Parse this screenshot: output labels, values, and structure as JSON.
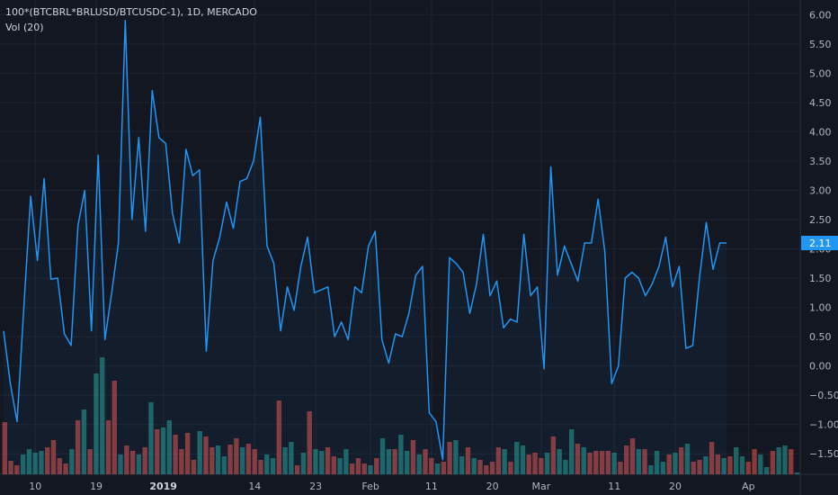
{
  "legend": {
    "symbol": "100*(BTCBRL*BRLUSD/BTCUSDC-1), 1D, MERCADO",
    "volume": "Vol (20)"
  },
  "colors": {
    "background": "#131722",
    "grid": "#1e2330",
    "line": "#2196f3",
    "volume_up": "#26a69a",
    "volume_down": "#ef5350",
    "price_label_bg": "#2196f3"
  },
  "chart_data": {
    "type": "line",
    "ylim": [
      -1.85,
      6.25
    ],
    "y_ticks": [
      6.0,
      5.5,
      5.0,
      4.5,
      4.0,
      3.5,
      3.0,
      2.5,
      2.0,
      1.5,
      1.0,
      0.5,
      0.0,
      -0.5,
      -1.0,
      -1.5
    ],
    "y_tick_labels": [
      "6.00",
      "5.50",
      "5.00",
      "4.50",
      "4.00",
      "3.50",
      "3.00",
      "2.50",
      "2.00",
      "1.50",
      "1.00",
      "0.50",
      "0.00",
      "−0.50",
      "−1.00",
      "−1.50"
    ],
    "x_ticks": [
      {
        "label": "10",
        "index": 5,
        "bold": false
      },
      {
        "label": "19",
        "index": 15,
        "bold": false
      },
      {
        "label": "2019",
        "index": 26,
        "bold": true
      },
      {
        "label": "14",
        "index": 41,
        "bold": false
      },
      {
        "label": "23",
        "index": 51,
        "bold": false
      },
      {
        "label": "Feb",
        "index": 60,
        "bold": false
      },
      {
        "label": "11",
        "index": 70,
        "bold": false
      },
      {
        "label": "20",
        "index": 80,
        "bold": false
      },
      {
        "label": "Mar",
        "index": 88,
        "bold": false
      },
      {
        "label": "11",
        "index": 100,
        "bold": false
      },
      {
        "label": "20",
        "index": 110,
        "bold": false
      },
      {
        "label": "Ap",
        "index": 122,
        "bold": false
      }
    ],
    "last_value_label": "2.11",
    "series": [
      {
        "values": [
          0.6,
          -0.3,
          -0.95,
          1.0,
          2.9,
          1.8,
          3.2,
          1.48,
          1.5,
          0.55,
          0.35,
          2.4,
          3.0,
          0.6,
          3.6,
          0.45,
          1.25,
          2.1,
          5.9,
          2.5,
          3.9,
          2.3,
          4.7,
          3.9,
          3.8,
          2.6,
          2.1,
          3.7,
          3.25,
          3.35,
          0.25,
          1.8,
          2.2,
          2.8,
          2.35,
          3.15,
          3.2,
          3.5,
          4.25,
          2.05,
          1.75,
          0.6,
          1.35,
          0.95,
          1.7,
          2.2,
          1.25,
          1.3,
          1.35,
          0.5,
          0.75,
          0.45,
          1.35,
          1.25,
          2.05,
          2.3,
          0.45,
          0.05,
          0.55,
          0.5,
          0.9,
          1.55,
          1.7,
          -0.8,
          -0.95,
          -1.6,
          1.85,
          1.75,
          1.6,
          0.9,
          1.4,
          2.25,
          1.2,
          1.45,
          0.65,
          0.8,
          0.75,
          2.25,
          1.2,
          1.35,
          -0.05,
          3.4,
          1.55,
          2.05,
          1.75,
          1.45,
          2.1,
          2.1,
          2.85,
          1.95,
          -0.3,
          0.0,
          1.5,
          1.6,
          1.5,
          1.2,
          1.4,
          1.7,
          2.2,
          1.35,
          1.7,
          0.3,
          0.35,
          1.5,
          2.45,
          1.65,
          2.1,
          2.1
        ]
      },
      {
        "name": "Vol (20)",
        "type": "bar",
        "values": [
          58,
          15,
          10,
          22,
          28,
          24,
          26,
          30,
          38,
          18,
          12,
          28,
          60,
          72,
          28,
          112,
          130,
          60,
          104,
          22,
          32,
          26,
          22,
          30,
          80,
          50,
          52,
          60,
          44,
          28,
          46,
          16,
          48,
          42,
          30,
          32,
          20,
          33,
          40,
          30,
          34,
          28,
          16,
          22,
          18,
          82,
          30,
          36,
          10,
          24,
          70,
          28,
          26,
          30,
          20,
          18,
          28,
          12,
          18,
          12,
          10,
          18,
          40,
          28,
          28,
          44,
          26,
          38,
          22,
          28,
          18,
          12,
          14,
          36,
          38,
          20,
          30,
          18,
          16,
          10,
          14,
          30,
          28,
          14,
          36,
          32,
          22,
          24,
          18,
          24,
          42,
          28,
          16,
          50,
          34,
          30,
          24,
          26,
          26,
          26,
          24,
          14,
          32,
          40,
          28,
          28,
          10,
          26,
          14,
          22,
          24,
          30,
          34,
          14,
          16,
          20,
          36,
          22,
          18,
          20,
          30,
          20,
          14,
          28,
          22,
          8,
          26,
          30,
          32,
          28,
          2
        ],
        "colors": [
          "d",
          "d",
          "d",
          "u",
          "u",
          "u",
          "u",
          "d",
          "d",
          "d",
          "d",
          "u",
          "d",
          "u",
          "d",
          "u",
          "u",
          "d",
          "d",
          "u",
          "d",
          "d",
          "u",
          "d",
          "u",
          "d",
          "u",
          "u",
          "d",
          "d",
          "d",
          "d",
          "u",
          "d",
          "d",
          "u",
          "u",
          "d",
          "d",
          "u",
          "d",
          "d",
          "d",
          "u",
          "u",
          "d",
          "u",
          "u",
          "d",
          "u",
          "d",
          "u",
          "u",
          "d",
          "d",
          "u",
          "u",
          "d",
          "d",
          "d",
          "u",
          "d",
          "u",
          "u",
          "d",
          "u",
          "u",
          "d",
          "u",
          "d",
          "d",
          "u",
          "d",
          "d",
          "u",
          "u",
          "d",
          "u",
          "d",
          "d",
          "d",
          "d",
          "u",
          "d",
          "u",
          "u",
          "d",
          "d",
          "d",
          "u",
          "d",
          "u",
          "u",
          "u",
          "d",
          "u",
          "d",
          "d",
          "d",
          "d",
          "u",
          "d",
          "d",
          "d",
          "u",
          "d",
          "u",
          "u",
          "u",
          "d",
          "u",
          "d",
          "u",
          "d",
          "d",
          "u",
          "d",
          "d",
          "u",
          "d",
          "u",
          "u",
          "d",
          "d",
          "u",
          "u",
          "d",
          "u",
          "u",
          "d",
          "u"
        ]
      }
    ]
  }
}
